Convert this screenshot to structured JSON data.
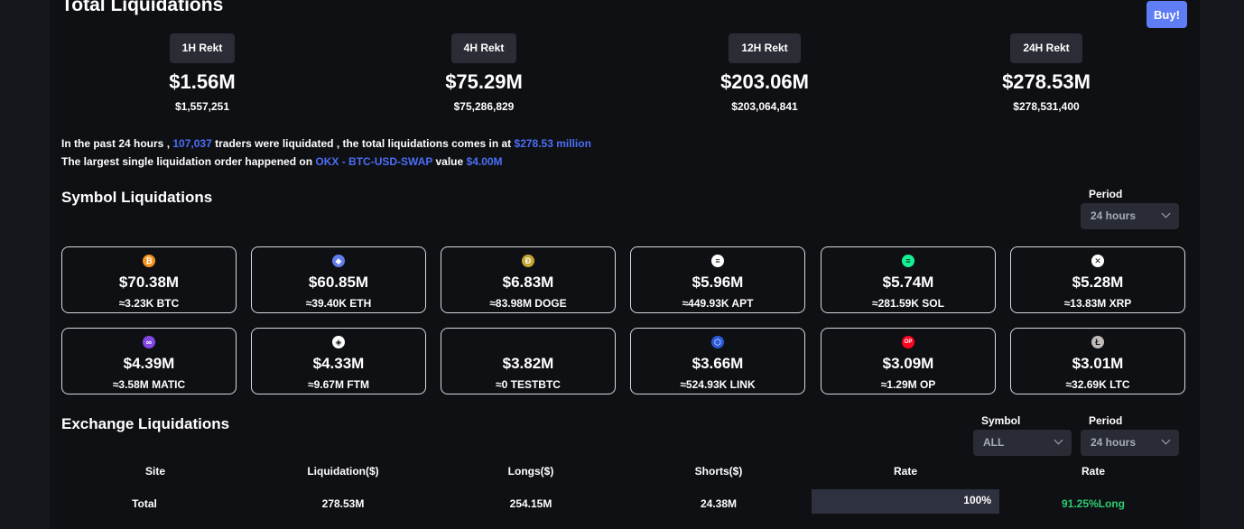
{
  "header": {
    "title": "Total Liquidations",
    "buy_label": "Buy!"
  },
  "rekt": [
    {
      "label": "1H Rekt",
      "value": "$1.56M",
      "exact": "$1,557,251"
    },
    {
      "label": "4H Rekt",
      "value": "$75.29M",
      "exact": "$75,286,829"
    },
    {
      "label": "12H Rekt",
      "value": "$203.06M",
      "exact": "$203,064,841"
    },
    {
      "label": "24H Rekt",
      "value": "$278.53M",
      "exact": "$278,531,400"
    }
  ],
  "summary": {
    "l1_a": "In the past 24 hours ,",
    "l1_traders": "107,037",
    "l1_b": "traders were liquidated , the total liquidations comes in at",
    "l1_total": "$278.53 million",
    "l2_a": "The largest single liquidation order happened on",
    "l2_order": "OKX - BTC-USD-SWAP",
    "l2_b": "value",
    "l2_value": "$4.00M"
  },
  "symbol_section": {
    "title": "Symbol Liquidations",
    "period_label": "Period",
    "period_value": "24 hours"
  },
  "symbols": [
    {
      "value": "$70.38M",
      "amount": "≈3.23K BTC",
      "icon": "bitcoin-icon",
      "glyph": "₿",
      "color": "#f7931a"
    },
    {
      "value": "$60.85M",
      "amount": "≈39.40K ETH",
      "icon": "ethereum-icon",
      "glyph": "◆",
      "color": "#627eea"
    },
    {
      "value": "$6.83M",
      "amount": "≈83.98M DOGE",
      "icon": "dogecoin-icon",
      "glyph": "Ð",
      "color": "#c2a633"
    },
    {
      "value": "$5.96M",
      "amount": "≈449.93K APT",
      "icon": "aptos-icon",
      "glyph": "≡",
      "color": "#ffffff"
    },
    {
      "value": "$5.74M",
      "amount": "≈281.59K SOL",
      "icon": "solana-icon",
      "glyph": "≡",
      "color": "#14f195"
    },
    {
      "value": "$5.28M",
      "amount": "≈13.83M XRP",
      "icon": "xrp-icon",
      "glyph": "✕",
      "color": "#ffffff"
    },
    {
      "value": "$4.39M",
      "amount": "≈3.58M MATIC",
      "icon": "polygon-icon",
      "glyph": "∞",
      "color": "#8247e5"
    },
    {
      "value": "$4.33M",
      "amount": "≈9.67M FTM",
      "icon": "fantom-icon",
      "glyph": "◈",
      "color": "#ffffff"
    },
    {
      "value": "$3.82M",
      "amount": "≈0 TESTBTC",
      "icon": "",
      "glyph": "",
      "color": ""
    },
    {
      "value": "$3.66M",
      "amount": "≈524.93K LINK",
      "icon": "chainlink-icon",
      "glyph": "⬡",
      "color": "#2a5ada"
    },
    {
      "value": "$3.09M",
      "amount": "≈1.29M OP",
      "icon": "optimism-icon",
      "glyph": "OP",
      "color": "#ff0420"
    },
    {
      "value": "$3.01M",
      "amount": "≈32.69K LTC",
      "icon": "litecoin-icon",
      "glyph": "Ł",
      "color": "#bfbbbb"
    }
  ],
  "exchange_section": {
    "title": "Exchange Liquidations",
    "symbol_label": "Symbol",
    "symbol_value": "ALL",
    "period_label": "Period",
    "period_value": "24 hours"
  },
  "table": {
    "headers": [
      "Site",
      "Liquidation($)",
      "Longs($)",
      "Shorts($)",
      "Rate",
      "Rate"
    ],
    "rows": [
      {
        "site": "Total",
        "liquidation": "278.53M",
        "longs": "254.15M",
        "shorts": "24.38M",
        "rate_bar": "100%",
        "rate": "91.25%Long"
      }
    ]
  }
}
